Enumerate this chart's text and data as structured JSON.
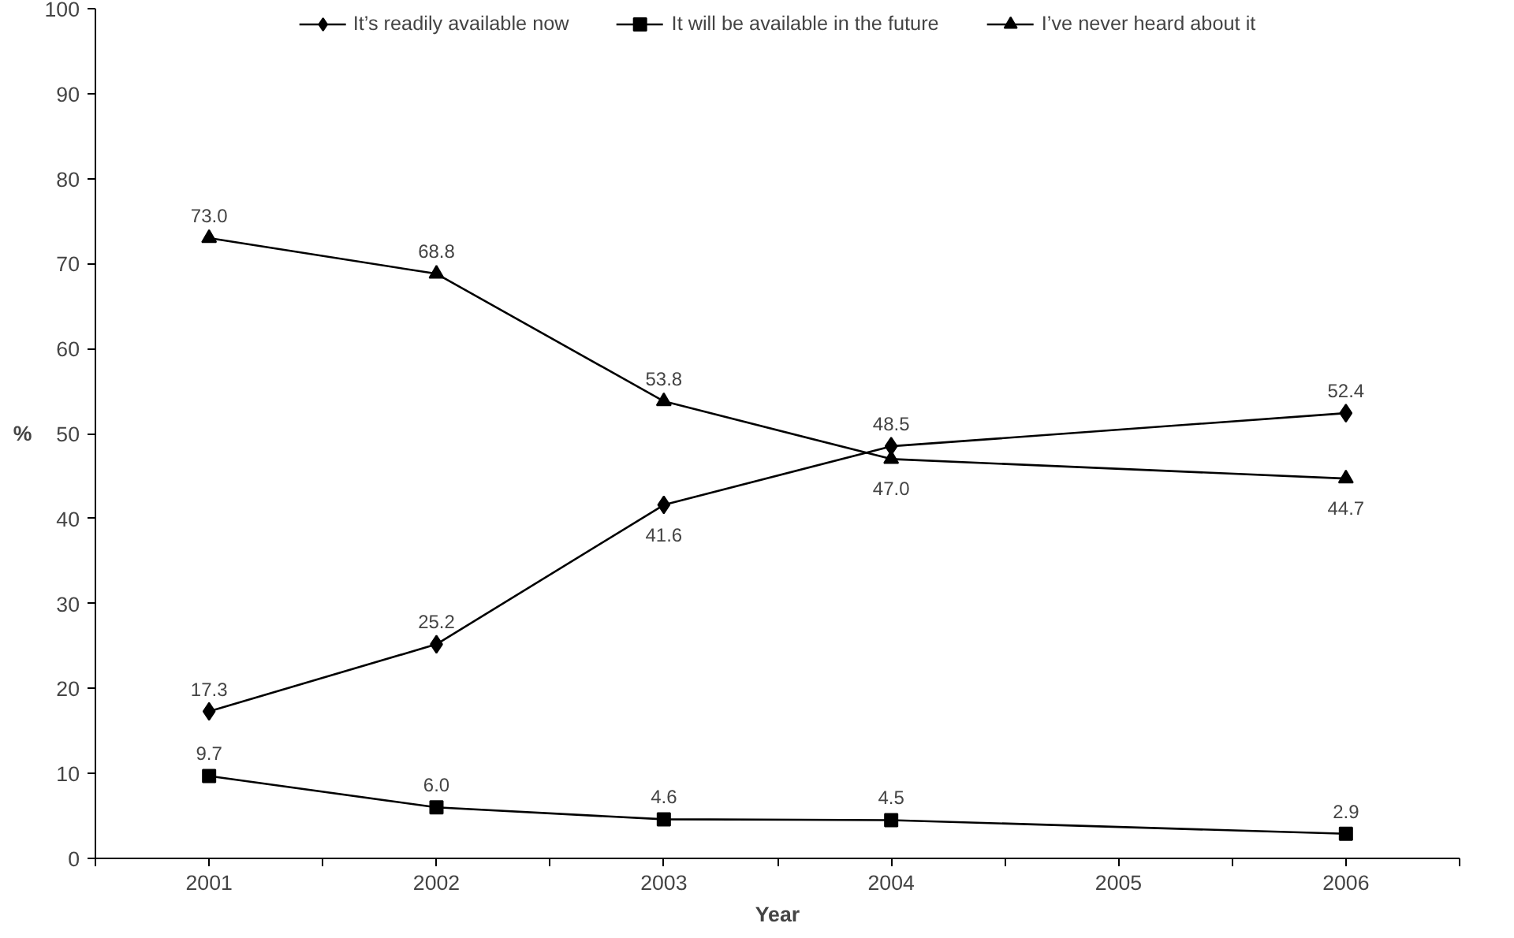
{
  "chart_data": {
    "type": "line",
    "xlabel": "Year",
    "ylabel": "%",
    "x": [
      2001,
      2002,
      2003,
      2004,
      2006
    ],
    "xlim": [
      2000.5,
      2006.5
    ],
    "xticks": [
      {
        "value": 2000.5,
        "label": null
      },
      {
        "value": 2001,
        "label": "2001"
      },
      {
        "value": 2001.5,
        "label": null
      },
      {
        "value": 2002,
        "label": "2002"
      },
      {
        "value": 2002.5,
        "label": null
      },
      {
        "value": 2003,
        "label": "2003"
      },
      {
        "value": 2003.5,
        "label": null
      },
      {
        "value": 2004,
        "label": "2004"
      },
      {
        "value": 2004.5,
        "label": null
      },
      {
        "value": 2005,
        "label": "2005"
      },
      {
        "value": 2005.5,
        "label": null
      },
      {
        "value": 2006,
        "label": "2006"
      },
      {
        "value": 2006.5,
        "label": null
      }
    ],
    "ylim": [
      0,
      100
    ],
    "yticks": [
      0,
      10,
      20,
      30,
      40,
      50,
      60,
      70,
      80,
      90,
      100
    ],
    "grid": false,
    "legend": "top",
    "line_style": "solid",
    "series": [
      {
        "name": "It’s readily available now",
        "color": "#000000",
        "marker": "diamond",
        "values": [
          17.3,
          25.2,
          41.6,
          48.5,
          52.4
        ],
        "value_labels": [
          "17.3",
          "25.2",
          "41.6",
          "48.5",
          "52.4"
        ]
      },
      {
        "name": "It will be available in the future",
        "color": "#000000",
        "marker": "square",
        "values": [
          9.7,
          6.0,
          4.6,
          4.5,
          2.9
        ],
        "value_labels": [
          "9.7",
          "6.0",
          "4.6",
          "4.5",
          "2.9"
        ]
      },
      {
        "name": "I’ve never heard about it",
        "color": "#000000",
        "marker": "triangle",
        "values": [
          73.0,
          68.8,
          53.8,
          47.0,
          44.7
        ],
        "value_labels": [
          "73.0",
          "68.8",
          "53.8",
          "47.0",
          "44.7"
        ]
      }
    ]
  }
}
